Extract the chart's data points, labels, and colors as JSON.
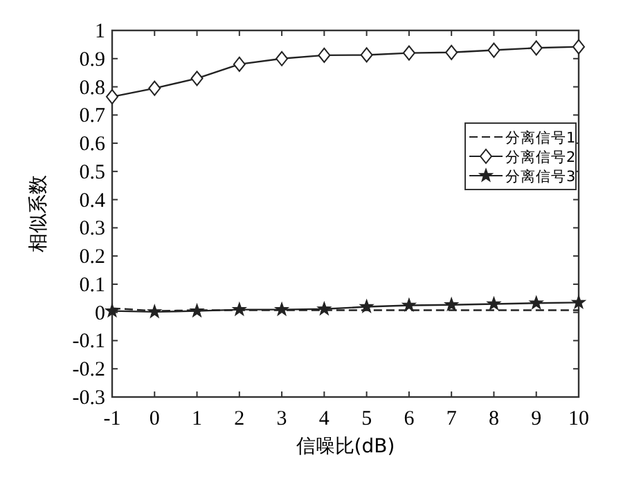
{
  "chart_data": {
    "type": "line",
    "xlabel": "信噪比(dB)",
    "ylabel": "相似系数",
    "x": [
      -1,
      0,
      1,
      2,
      3,
      4,
      5,
      6,
      7,
      8,
      9,
      10
    ],
    "series": [
      {
        "name": "分离信号1",
        "color": "#222222",
        "line_style": "dashed",
        "marker": "none",
        "values": [
          0.015,
          0.005,
          0.008,
          0.008,
          0.008,
          0.008,
          0.008,
          0.008,
          0.008,
          0.008,
          0.008,
          0.008
        ]
      },
      {
        "name": "分离信号2",
        "color": "#222222",
        "line_style": "solid",
        "marker": "diamond",
        "values": [
          0.765,
          0.795,
          0.83,
          0.88,
          0.9,
          0.912,
          0.913,
          0.92,
          0.922,
          0.93,
          0.938,
          0.942
        ]
      },
      {
        "name": "分离信号3",
        "color": "#222222",
        "line_style": "solid",
        "marker": "star",
        "values": [
          0.005,
          0.002,
          0.005,
          0.01,
          0.01,
          0.012,
          0.02,
          0.025,
          0.027,
          0.03,
          0.033,
          0.035
        ]
      }
    ],
    "xlim": [
      -1,
      10
    ],
    "xticks": [
      -1,
      0,
      1,
      2,
      3,
      4,
      5,
      6,
      7,
      8,
      9,
      10
    ],
    "ylim": [
      -0.3,
      1
    ],
    "yticks": [
      -0.3,
      -0.2,
      -0.1,
      0,
      0.1,
      0.2,
      0.3,
      0.4,
      0.5,
      0.6,
      0.7,
      0.8,
      0.9,
      1
    ],
    "grid": false,
    "legend": "right"
  }
}
